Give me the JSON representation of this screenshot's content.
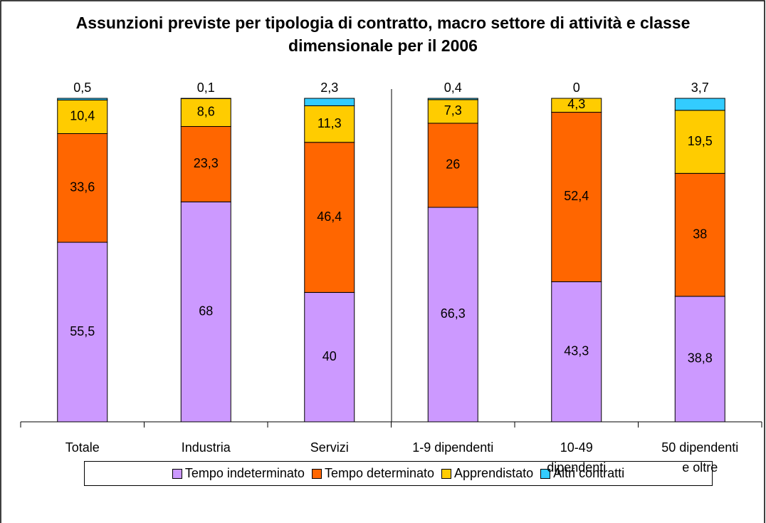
{
  "chart_data": {
    "type": "bar",
    "stacked": true,
    "title": "Assunzioni previste per tipologia di contratto, macro settore di attività e classe dimensionale per il 2006",
    "categories": [
      "Totale",
      "Industria",
      "Servizi",
      "1-9 dipendenti",
      "10-49\ndipendenti",
      "50 dipendenti\ne oltre"
    ],
    "series": [
      {
        "name": "Tempo indeterminato",
        "color": "#cc99ff",
        "values": [
          55.5,
          68,
          40,
          66.3,
          43.3,
          38.8
        ],
        "value_labels": [
          "55,5",
          "68",
          "40",
          "66,3",
          "43,3",
          "38,8"
        ]
      },
      {
        "name": "Tempo determinato",
        "color": "#ff6600",
        "values": [
          33.6,
          23.3,
          46.4,
          26,
          52.4,
          38
        ],
        "value_labels": [
          "33,6",
          "23,3",
          "46,4",
          "26",
          "52,4",
          "38"
        ]
      },
      {
        "name": "Apprendistato",
        "color": "#ffcc00",
        "values": [
          10.4,
          8.6,
          11.3,
          7.3,
          4.3,
          19.5
        ],
        "value_labels": [
          "10,4",
          "8,6",
          "11,3",
          "7,3",
          "4,3",
          "19,5"
        ]
      },
      {
        "name": "Altri contratti",
        "color": "#33ccff",
        "values": [
          0.5,
          0.1,
          2.3,
          0.4,
          0,
          3.7
        ],
        "value_labels": [
          "0,5",
          "0,1",
          "2,3",
          "0,4",
          "0",
          "3,7"
        ]
      }
    ],
    "legend": "bottom"
  }
}
